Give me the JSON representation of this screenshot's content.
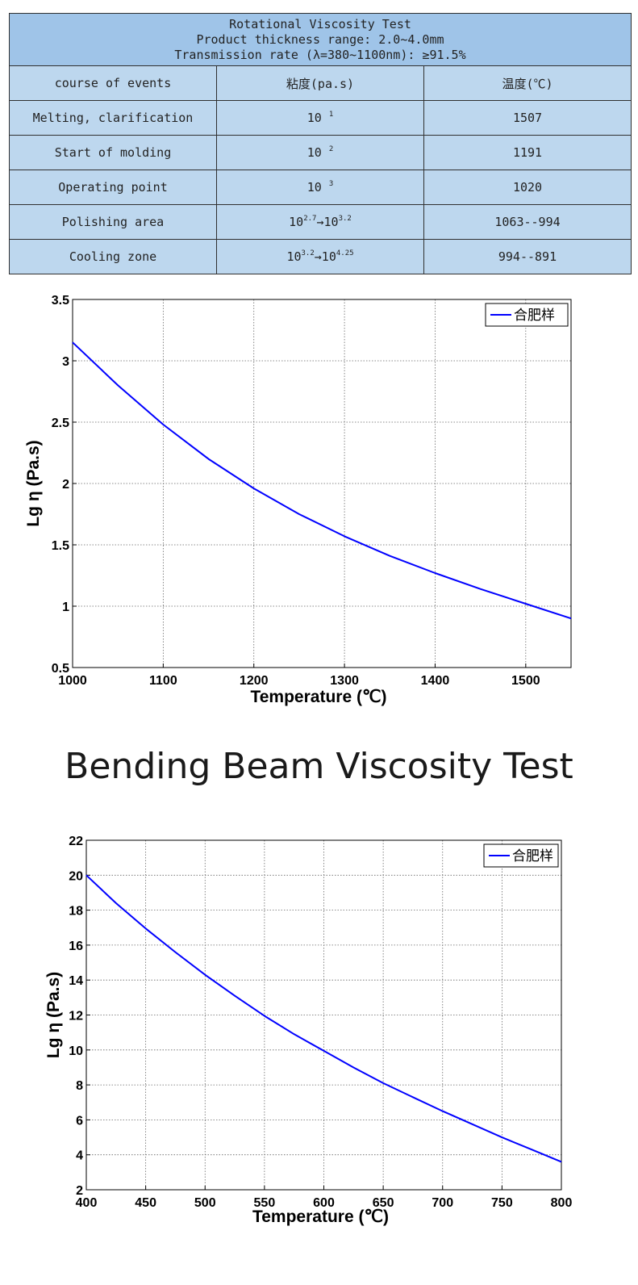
{
  "table": {
    "header_lines": [
      "Rotational Viscosity Test",
      "Product thickness range: 2.0~4.0mm",
      "Transmission rate (λ=380~1100nm): ≥91.5%"
    ],
    "columns": [
      "course of events",
      "粘度(pa.s)",
      "温度(℃)"
    ],
    "rows": [
      {
        "event": "Melting, clarification",
        "visc_base": "10",
        "visc_exp": "1",
        "visc_to_base": "",
        "visc_to_exp": "",
        "temp": "1507"
      },
      {
        "event": "Start of molding",
        "visc_base": "10",
        "visc_exp": "2",
        "visc_to_base": "",
        "visc_to_exp": "",
        "temp": "1191"
      },
      {
        "event": "Operating point",
        "visc_base": "10",
        "visc_exp": "3",
        "visc_to_base": "",
        "visc_to_exp": "",
        "temp": "1020"
      },
      {
        "event": "Polishing area",
        "visc_base": "10",
        "visc_exp": "2.7",
        "visc_to_base": "→10",
        "visc_to_exp": "3.2",
        "temp": "1063--994"
      },
      {
        "event": "Cooling zone",
        "visc_base": "10",
        "visc_exp": "3.2",
        "visc_to_base": "→10",
        "visc_to_exp": "4.25",
        "temp": "994--891"
      }
    ]
  },
  "section_title": "Bending Beam Viscosity Test",
  "chart_data": [
    {
      "type": "line",
      "title": "",
      "xlabel": "Temperature (℃)",
      "ylabel": "Lg η (Pa.s)",
      "xlim": [
        1000,
        1550
      ],
      "ylim": [
        0.5,
        3.5
      ],
      "xticks": [
        1000,
        1100,
        1200,
        1300,
        1400,
        1500
      ],
      "yticks": [
        0.5,
        1,
        1.5,
        2,
        2.5,
        3,
        3.5
      ],
      "ytick_labels": [
        "0.5",
        "1",
        "1.5",
        "2",
        "2.5",
        "3",
        "3.5"
      ],
      "grid": true,
      "legend_position": "top-right",
      "series": [
        {
          "name": "合肥样",
          "color": "#0000ff",
          "x": [
            1000,
            1050,
            1100,
            1150,
            1200,
            1250,
            1300,
            1350,
            1400,
            1450,
            1500,
            1550
          ],
          "y": [
            3.15,
            2.8,
            2.48,
            2.2,
            1.96,
            1.75,
            1.57,
            1.41,
            1.27,
            1.14,
            1.02,
            0.9
          ]
        }
      ]
    },
    {
      "type": "line",
      "title": "",
      "xlabel": "Temperature (℃)",
      "ylabel": "Lg η (Pa.s)",
      "xlim": [
        400,
        800
      ],
      "ylim": [
        2,
        22
      ],
      "xticks": [
        400,
        450,
        500,
        550,
        600,
        650,
        700,
        750,
        800
      ],
      "yticks": [
        2,
        4,
        6,
        8,
        10,
        12,
        14,
        16,
        18,
        20,
        22
      ],
      "ytick_labels": [
        "2",
        "4",
        "6",
        "8",
        "10",
        "12",
        "14",
        "16",
        "18",
        "20",
        "22"
      ],
      "grid": true,
      "legend_position": "top-right",
      "series": [
        {
          "name": "合肥样",
          "color": "#0000ff",
          "x": [
            400,
            425,
            450,
            475,
            500,
            525,
            550,
            575,
            600,
            625,
            650,
            675,
            700,
            725,
            750,
            775,
            800
          ],
          "y": [
            20,
            18.4,
            16.95,
            15.6,
            14.3,
            13.1,
            11.95,
            10.9,
            9.95,
            9.0,
            8.1,
            7.3,
            6.5,
            5.75,
            5.0,
            4.3,
            3.6
          ]
        }
      ]
    }
  ]
}
